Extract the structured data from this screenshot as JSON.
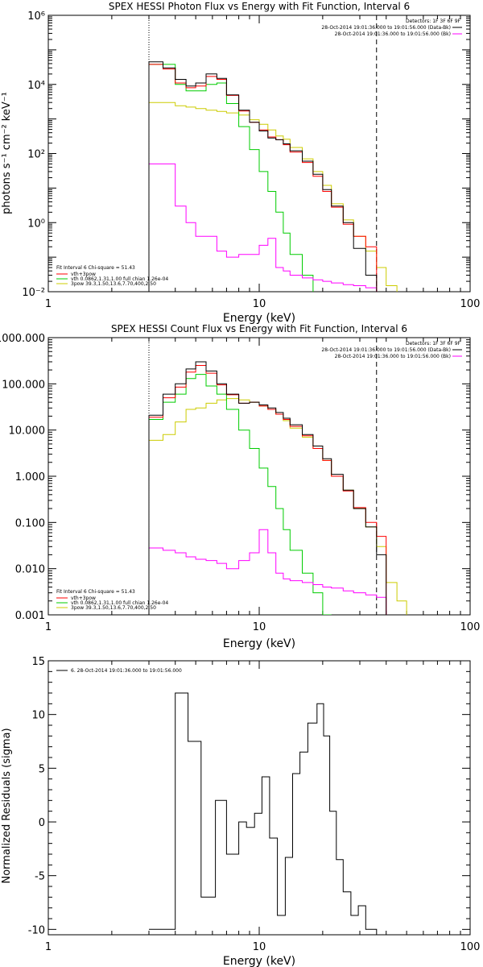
{
  "chart_data": [
    {
      "type": "line",
      "title": "SPEX HESSI Photon Flux vs Energy with Fit Function, Interval 6",
      "xlabel": "Energy (keV)",
      "ylabel": "photons s⁻¹ cm⁻² keV⁻¹",
      "xlim": [
        1,
        100
      ],
      "ylim": [
        0.01,
        1000000
      ],
      "xscale": "log",
      "yscale": "log",
      "xtick_labels": [
        "1",
        "10",
        "100"
      ],
      "ytick_labels": [
        "10⁻²",
        "10⁰",
        "10²",
        "10⁴",
        "10⁶"
      ],
      "legend_topright": [
        "Detectors: 1F 3F 6F 9F",
        "28-Oct-2014 19:01:36.000 to 19:01:56.000 (Data-Bk)",
        "28-Oct-2014 19:01:36.000 to 19:01:56.000 (Bk)"
      ],
      "legend_bottomleft": [
        "Fit Interval 6   Chi-square = 51.43",
        "vth+3pow",
        "vth 0.0862,1.31,1.00  full chian 1.26e-04",
        "3pow 39.3,1.50,13.6,7.70,400,2.50"
      ],
      "vlines": [
        3,
        36
      ],
      "edges": [
        3,
        3.5,
        4,
        4.5,
        5,
        5.6,
        6.3,
        7,
        8,
        9,
        10,
        11,
        12,
        13,
        14,
        16,
        18,
        20,
        22,
        25,
        28,
        32,
        36,
        40,
        45,
        50
      ],
      "series": [
        {
          "name": "28-Oct-2014 19:01:36.000 to 19:01:56.000 (Data-Bk)",
          "color": "#000000",
          "values": [
            45000,
            30000,
            14000,
            9000,
            11000,
            20000,
            15000,
            5000,
            1800,
            800,
            450,
            280,
            250,
            190,
            120,
            60,
            25,
            9,
            3,
            1,
            0.18,
            0.03,
            null,
            null,
            null
          ]
        },
        {
          "name": "vth+3pow",
          "color": "#ff0000",
          "values": [
            38000,
            28000,
            11000,
            8000,
            9000,
            17000,
            14000,
            4800,
            1700,
            800,
            480,
            300,
            250,
            180,
            110,
            55,
            22,
            8,
            2.8,
            0.9,
            0.4,
            0.2,
            null,
            null,
            null
          ]
        },
        {
          "name": "vth 0.0862,1.31,1.00  full chian 1.26e-04",
          "color": "#00cc00",
          "values": [
            38000,
            38000,
            10000,
            6500,
            6500,
            10000,
            11000,
            2800,
            600,
            130,
            30,
            8,
            2,
            0.5,
            0.12,
            0.03,
            0.008,
            null,
            null,
            null,
            null,
            null,
            null,
            null,
            null
          ]
        },
        {
          "name": "3pow 39.3,1.50,13.6,7.70,400,2.50",
          "color": "#cccc00",
          "values": [
            3000,
            3000,
            2400,
            2200,
            2000,
            1800,
            1650,
            1500,
            1300,
            950,
            700,
            480,
            320,
            260,
            150,
            70,
            30,
            12,
            3.5,
            1.2,
            0.4,
            0.15,
            0.05,
            0.015,
            0.008
          ]
        },
        {
          "name": "28-Oct-2014 19:01:36.000 to 19:01:56.000 (Bk)",
          "color": "#ff00ff",
          "values": [
            50,
            50,
            3,
            1,
            0.4,
            0.4,
            0.15,
            0.1,
            0.12,
            0.12,
            0.22,
            0.35,
            0.05,
            0.04,
            0.03,
            0.025,
            0.022,
            0.02,
            0.018,
            0.016,
            0.015,
            0.013,
            null,
            null,
            null
          ]
        }
      ]
    },
    {
      "type": "line",
      "title": "SPEX HESSI Count Flux vs Energy with Fit Function, Interval 6",
      "xlabel": "Energy (keV)",
      "ylabel": "",
      "xlim": [
        1,
        100
      ],
      "ylim": [
        0.001,
        1000
      ],
      "xscale": "log",
      "yscale": "log",
      "xtick_labels": [
        "1",
        "10",
        "100"
      ],
      "ytick_labels": [
        "0.001",
        "0.010",
        "0.100",
        "1.000",
        "10.000",
        "100.000",
        "1000.000"
      ],
      "legend_topright": [
        "Detectors: 1F 3F 6F 9F",
        "28-Oct-2014 19:01:36.000 to 19:01:56.000 (Data-Bk)",
        "28-Oct-2014 19:01:36.000 to 19:01:56.000 (Bk)"
      ],
      "legend_bottomleft": [
        "Fit Interval 6   Chi-square = 51.43",
        "vth+3pow",
        "vth 0.0862,1.31,1.00  full chian 1.26e-04",
        "3pow 39.3,1.50,13.6,7.70,400,2.50"
      ],
      "vlines": [
        3,
        36
      ],
      "edges": [
        3,
        3.5,
        4,
        4.5,
        5,
        5.6,
        6.3,
        7,
        8,
        9,
        10,
        11,
        12,
        13,
        14,
        16,
        18,
        20,
        22,
        25,
        28,
        32,
        36,
        40,
        45,
        50
      ],
      "series": [
        {
          "name": "28-Oct-2014 19:01:36.000 to 19:01:56.000 (Data-Bk)",
          "color": "#000000",
          "values": [
            21,
            60,
            100,
            210,
            300,
            190,
            100,
            60,
            38,
            40,
            35,
            30,
            24,
            18,
            13,
            8,
            4.5,
            2.4,
            1.1,
            0.5,
            0.2,
            0.08,
            0.02,
            null,
            null
          ]
        },
        {
          "name": "vth+3pow",
          "color": "#ff0000",
          "values": [
            19,
            50,
            85,
            180,
            250,
            170,
            95,
            58,
            38,
            40,
            33,
            28,
            22,
            17,
            12,
            7.5,
            4,
            2.2,
            1,
            0.48,
            0.21,
            0.1,
            0.05,
            null,
            null
          ]
        },
        {
          "name": "vth 0.0862,1.31,1.00  full chian 1.26e-04",
          "color": "#00cc00",
          "values": [
            17,
            40,
            60,
            130,
            160,
            90,
            60,
            28,
            10,
            4,
            1.5,
            0.6,
            0.2,
            0.07,
            0.025,
            0.008,
            0.003,
            0.001,
            null,
            null,
            null,
            null,
            null,
            null,
            null
          ]
        },
        {
          "name": "3pow 39.3,1.50,13.6,7.70,400,2.50",
          "color": "#cccc00",
          "values": [
            6,
            8,
            15,
            28,
            30,
            38,
            45,
            48,
            45,
            40,
            33,
            28,
            22,
            16,
            11,
            7,
            4,
            2.2,
            1,
            0.5,
            0.2,
            0.08,
            0.03,
            0.005,
            0.002
          ]
        },
        {
          "name": "28-Oct-2014 19:01:36.000 to 19:01:56.000 (Bk)",
          "color": "#ff00ff",
          "values": [
            0.028,
            0.025,
            0.022,
            0.018,
            0.016,
            0.015,
            0.013,
            0.01,
            0.015,
            0.022,
            0.07,
            0.022,
            0.008,
            0.006,
            0.0055,
            0.005,
            0.0045,
            0.004,
            0.0038,
            0.0033,
            0.003,
            0.0027,
            0.0024,
            null,
            null
          ]
        }
      ]
    },
    {
      "type": "line",
      "title": "",
      "xlabel": "Energy (keV)",
      "ylabel": "Normalized Residuals (sigma)",
      "xlim": [
        1,
        100
      ],
      "ylim": [
        -10.5,
        15
      ],
      "xscale": "log",
      "yscale": "linear",
      "xtick_labels": [
        "1",
        "10",
        "100"
      ],
      "ytick_labels": [
        "-10",
        "-5",
        "0",
        "5",
        "10",
        "15"
      ],
      "legend": [
        "6. 28-Oct-2014 19:01:36.000 to 19:01:56.000"
      ],
      "edges": [
        3,
        4,
        4.6,
        5.3,
        6.2,
        7,
        8,
        8.7,
        9.5,
        10.3,
        11.2,
        12.2,
        13.3,
        14.4,
        15.6,
        17,
        18.8,
        20.2,
        21.6,
        23.2,
        25,
        27.2,
        29.5,
        32,
        34,
        36
      ],
      "series": [
        {
          "name": "6. 28-Oct-2014 19:01:36.000 to 19:01:56.000",
          "color": "#000000",
          "values": [
            -10,
            12,
            7.5,
            -7,
            2,
            -3,
            0,
            -0.5,
            0.8,
            4.2,
            -1.5,
            -8.7,
            -3.3,
            4.5,
            6.5,
            9.2,
            11,
            8,
            1,
            -3.5,
            -6.5,
            -8.7,
            -7.8,
            -10,
            -10
          ]
        }
      ]
    }
  ]
}
